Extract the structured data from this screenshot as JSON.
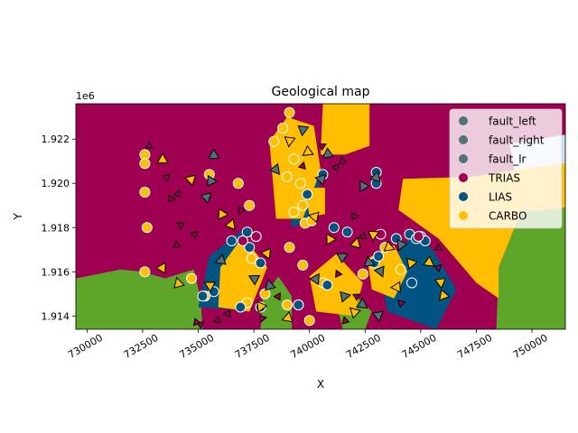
{
  "chart_data": {
    "type": "scatter",
    "title": "Geological map",
    "xlabel": "X",
    "ylabel": "Y",
    "y_offset_label": "1e6",
    "xlim": [
      729500,
      751500
    ],
    "ylim": [
      1913400,
      1923600
    ],
    "x_ticks": [
      730000,
      732500,
      735000,
      737500,
      740000,
      742500,
      745000,
      747500,
      750000
    ],
    "x_tick_labels": [
      "730000",
      "732500",
      "735000",
      "737500",
      "740000",
      "742500",
      "745000",
      "747500",
      "750000"
    ],
    "y_ticks": [
      1914000,
      1916000,
      1918000,
      1920000,
      1922000
    ],
    "y_tick_labels": [
      "1.914",
      "1.916",
      "1.918",
      "1.920",
      "1.922"
    ],
    "grid": false,
    "legend_position": "top-right",
    "legend": [
      {
        "label": "fault_left",
        "color": "#527279"
      },
      {
        "label": "fault_right",
        "color": "#527279"
      },
      {
        "label": "fault_lr",
        "color": "#527279"
      },
      {
        "label": "TRIAS",
        "color": "#9f0052"
      },
      {
        "label": "LIAS",
        "color": "#015482"
      },
      {
        "label": "CARBO",
        "color": "#ffbe00"
      }
    ],
    "colors": {
      "TRIAS": "#9f0052",
      "LIAS": "#015482",
      "CARBO": "#ffbe00",
      "basement": "#5da629",
      "fault": "#527279"
    },
    "map_regions": [
      {
        "unit": "basement",
        "polygon": [
          [
            729500,
            1913400
          ],
          [
            729500,
            1915700
          ],
          [
            731500,
            1916100
          ],
          [
            732500,
            1916000
          ],
          [
            733500,
            1915700
          ],
          [
            734800,
            1916100
          ],
          [
            735100,
            1914800
          ],
          [
            735200,
            1913400
          ]
        ]
      },
      {
        "unit": "basement",
        "polygon": [
          [
            737800,
            1913400
          ],
          [
            737900,
            1914800
          ],
          [
            738600,
            1915800
          ],
          [
            739200,
            1914900
          ],
          [
            739200,
            1913400
          ]
        ]
      },
      {
        "unit": "basement",
        "polygon": [
          [
            741500,
            1913400
          ],
          [
            741300,
            1914200
          ],
          [
            742200,
            1914800
          ],
          [
            742800,
            1914200
          ],
          [
            742500,
            1913400
          ]
        ]
      },
      {
        "unit": "basement",
        "polygon": [
          [
            748400,
            1913400
          ],
          [
            748500,
            1916200
          ],
          [
            749500,
            1918700
          ],
          [
            751500,
            1918900
          ],
          [
            751500,
            1913400
          ]
        ]
      },
      {
        "unit": "LIAS",
        "polygon": [
          [
            735000,
            1914400
          ],
          [
            735500,
            1916700
          ],
          [
            737000,
            1917900
          ],
          [
            737400,
            1915200
          ],
          [
            736600,
            1914300
          ]
        ]
      },
      {
        "unit": "LIAS",
        "polygon": [
          [
            743500,
            1914200
          ],
          [
            743200,
            1915900
          ],
          [
            744800,
            1917900
          ],
          [
            745600,
            1916900
          ],
          [
            746600,
            1915200
          ],
          [
            745700,
            1913400
          ]
        ]
      },
      {
        "unit": "LIAS",
        "polygon": [
          [
            739200,
            1918000
          ],
          [
            739000,
            1920600
          ],
          [
            739900,
            1921400
          ],
          [
            740500,
            1919800
          ],
          [
            739900,
            1918300
          ]
        ]
      },
      {
        "unit": "CARBO",
        "polygon": [
          [
            744200,
            1920200
          ],
          [
            744000,
            1918800
          ],
          [
            745800,
            1917500
          ],
          [
            747500,
            1915500
          ],
          [
            748500,
            1914800
          ],
          [
            748500,
            1916200
          ],
          [
            749500,
            1918700
          ],
          [
            751500,
            1918900
          ],
          [
            751500,
            1920900
          ],
          [
            749200,
            1920600
          ],
          [
            747300,
            1920300
          ]
        ]
      },
      {
        "unit": "CARBO",
        "polygon": [
          [
            740300,
            1914200
          ],
          [
            740000,
            1915800
          ],
          [
            741200,
            1916800
          ],
          [
            742400,
            1915500
          ],
          [
            742000,
            1914000
          ]
        ]
      },
      {
        "unit": "CARBO",
        "polygon": [
          [
            735900,
            1914400
          ],
          [
            736000,
            1916200
          ],
          [
            737000,
            1917600
          ],
          [
            738100,
            1916200
          ],
          [
            737300,
            1914200
          ]
        ]
      },
      {
        "unit": "CARBO",
        "polygon": [
          [
            738500,
            1918400
          ],
          [
            738200,
            1921900
          ],
          [
            739000,
            1923000
          ],
          [
            740200,
            1922600
          ],
          [
            740500,
            1920600
          ],
          [
            739700,
            1918400
          ]
        ]
      },
      {
        "unit": "CARBO",
        "polygon": [
          [
            740500,
            1921300
          ],
          [
            740600,
            1923600
          ],
          [
            742700,
            1923600
          ],
          [
            742700,
            1921700
          ],
          [
            741600,
            1921300
          ]
        ]
      },
      {
        "unit": "CARBO",
        "polygon": [
          [
            742800,
            1915200
          ],
          [
            742600,
            1916600
          ],
          [
            743800,
            1917200
          ],
          [
            744400,
            1916000
          ],
          [
            743800,
            1914800
          ]
        ]
      },
      {
        "unit": "CARBO",
        "polygon": [
          [
            740000,
            1918500
          ],
          [
            739800,
            1919800
          ],
          [
            740700,
            1919800
          ],
          [
            740700,
            1918600
          ]
        ]
      },
      {
        "unit": "fault_zone",
        "polygon": [
          [
            749200,
            1920600
          ],
          [
            749000,
            1921800
          ],
          [
            751500,
            1922200
          ],
          [
            751500,
            1920900
          ]
        ]
      }
    ],
    "series": [
      {
        "name": "CARBO",
        "marker": "circle",
        "points": [
          [
            732600,
            1921300
          ],
          [
            732600,
            1920900
          ],
          [
            732600,
            1919600
          ],
          [
            732700,
            1918000
          ],
          [
            732600,
            1916000
          ],
          [
            734700,
            1915700
          ],
          [
            735500,
            1920400
          ],
          [
            736800,
            1920000
          ],
          [
            737300,
            1919000
          ],
          [
            735300,
            1914900
          ],
          [
            737200,
            1914600
          ],
          [
            738400,
            1921900
          ],
          [
            738800,
            1922500
          ],
          [
            739100,
            1923200
          ],
          [
            739300,
            1921100
          ],
          [
            739000,
            1920300
          ],
          [
            739600,
            1920000
          ],
          [
            739700,
            1919000
          ],
          [
            739300,
            1918700
          ],
          [
            739800,
            1918200
          ],
          [
            740100,
            1918300
          ],
          [
            739100,
            1917100
          ],
          [
            739700,
            1916300
          ],
          [
            740600,
            1915500
          ],
          [
            739000,
            1914500
          ],
          [
            739500,
            1914500
          ],
          [
            740000,
            1913800
          ],
          [
            743400,
            1917100
          ],
          [
            744100,
            1916100
          ],
          [
            738000,
            1915000
          ],
          [
            737400,
            1916600
          ],
          [
            742400,
            1915900
          ]
        ]
      },
      {
        "name": "LIAS",
        "marker": "circle",
        "points": [
          [
            735700,
            1915100
          ],
          [
            736900,
            1914400
          ],
          [
            737800,
            1914400
          ],
          [
            737200,
            1917800
          ],
          [
            737300,
            1917100
          ],
          [
            737800,
            1916400
          ],
          [
            736500,
            1917400
          ],
          [
            737600,
            1917600
          ],
          [
            739900,
            1919500
          ],
          [
            740600,
            1920400
          ],
          [
            741100,
            1918000
          ],
          [
            741700,
            1917800
          ],
          [
            743000,
            1920500
          ],
          [
            743000,
            1920000
          ],
          [
            743900,
            1917500
          ],
          [
            744500,
            1917700
          ],
          [
            744800,
            1917500
          ],
          [
            742900,
            1916400
          ],
          [
            745000,
            1917600
          ],
          [
            744600,
            1915500
          ],
          [
            743100,
            1916700
          ],
          [
            745200,
            1917400
          ],
          [
            740800,
            1915400
          ],
          [
            739500,
            1914500
          ],
          [
            735200,
            1914900
          ]
        ]
      },
      {
        "name": "TRIAS",
        "marker": "circle",
        "points": [
          [
            737000,
            1917400
          ],
          [
            737600,
            1917600
          ],
          [
            743200,
            1917700
          ],
          [
            744900,
            1917600
          ]
        ]
      },
      {
        "name": "fault_left",
        "marker": "triangle",
        "points": [
          [
            735700,
            1921300
          ],
          [
            735400,
            1919400
          ],
          [
            735600,
            1920100
          ],
          [
            738500,
            1920600
          ],
          [
            739700,
            1922400
          ],
          [
            740800,
            1921300
          ],
          [
            740500,
            1920200
          ],
          [
            742400,
            1919900
          ],
          [
            743000,
            1920300
          ],
          [
            741500,
            1916700
          ],
          [
            742700,
            1916400
          ],
          [
            743200,
            1916000
          ],
          [
            744100,
            1917200
          ],
          [
            736000,
            1916500
          ],
          [
            737500,
            1915700
          ],
          [
            738200,
            1915400
          ],
          [
            740300,
            1915700
          ],
          [
            741600,
            1914900
          ],
          [
            742400,
            1914500
          ],
          [
            743100,
            1914000
          ]
        ]
      },
      {
        "name": "fault_right",
        "marker": "triangle",
        "points": [
          [
            733400,
            1921100
          ],
          [
            734700,
            1920200
          ],
          [
            736100,
            1918600
          ],
          [
            736500,
            1918100
          ],
          [
            739100,
            1921900
          ],
          [
            739900,
            1921400
          ],
          [
            740200,
            1918500
          ],
          [
            740900,
            1917500
          ],
          [
            742100,
            1917300
          ],
          [
            742900,
            1917700
          ],
          [
            743600,
            1917100
          ],
          [
            738100,
            1916800
          ],
          [
            737800,
            1914400
          ],
          [
            739000,
            1913900
          ],
          [
            735500,
            1915400
          ],
          [
            734100,
            1915500
          ],
          [
            733400,
            1916200
          ],
          [
            744600,
            1916400
          ],
          [
            745400,
            1916400
          ],
          [
            745900,
            1915500
          ],
          [
            746000,
            1914900
          ],
          [
            743900,
            1915300
          ],
          [
            742000,
            1914200
          ]
        ]
      },
      {
        "name": "fault_lr",
        "marker": "triangle",
        "points": [
          [
            732800,
            1921700
          ],
          [
            733600,
            1920300
          ],
          [
            733800,
            1919300
          ],
          [
            734100,
            1919500
          ],
          [
            734200,
            1918100
          ],
          [
            734000,
            1917200
          ],
          [
            734800,
            1917700
          ],
          [
            736900,
            1918800
          ],
          [
            739700,
            1920800
          ],
          [
            740600,
            1921700
          ],
          [
            741500,
            1921000
          ],
          [
            741200,
            1920700
          ],
          [
            742000,
            1918500
          ],
          [
            742400,
            1917600
          ],
          [
            742100,
            1914900
          ],
          [
            741600,
            1913800
          ],
          [
            738600,
            1914900
          ],
          [
            737900,
            1913900
          ],
          [
            735900,
            1913800
          ],
          [
            735100,
            1913600
          ],
          [
            734900,
            1913700
          ],
          [
            736300,
            1914100
          ],
          [
            744100,
            1914600
          ],
          [
            745800,
            1917100
          ],
          [
            745800,
            1916200
          ],
          [
            741300,
            1915900
          ]
        ]
      }
    ]
  }
}
